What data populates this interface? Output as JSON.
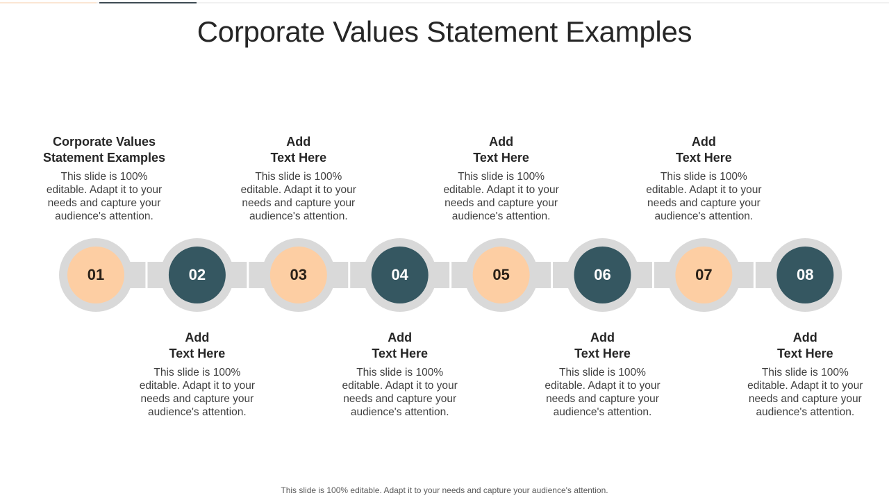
{
  "slide": {
    "title": "Corporate Values Statement Examples",
    "footer": "This slide is 100% editable. Adapt it to your needs and capture your audience's attention."
  },
  "colors": {
    "ring": "#d9d9d9",
    "light": "#fdcea3",
    "dark": "#355761",
    "title_text": "#262626"
  },
  "steps": [
    {
      "number": "01",
      "style": "light",
      "position": "top",
      "heading_line1": "Corporate Values",
      "heading_line2": "Statement Examples",
      "body": "This slide is 100% editable. Adapt it to your needs and capture your audience's attention."
    },
    {
      "number": "02",
      "style": "dark",
      "position": "bottom",
      "heading_line1": "Add",
      "heading_line2": "Text Here",
      "body": "This slide is 100% editable. Adapt it to your needs and capture your audience's attention."
    },
    {
      "number": "03",
      "style": "light",
      "position": "top",
      "heading_line1": "Add",
      "heading_line2": "Text Here",
      "body": "This slide is 100% editable. Adapt it to your needs and capture your audience's attention."
    },
    {
      "number": "04",
      "style": "dark",
      "position": "bottom",
      "heading_line1": "Add",
      "heading_line2": "Text Here",
      "body": "This slide is 100% editable. Adapt it to your needs and capture your audience's attention."
    },
    {
      "number": "05",
      "style": "light",
      "position": "top",
      "heading_line1": "Add",
      "heading_line2": "Text Here",
      "body": "This slide is 100% editable. Adapt it to your needs and capture your audience's attention."
    },
    {
      "number": "06",
      "style": "dark",
      "position": "bottom",
      "heading_line1": "Add",
      "heading_line2": "Text Here",
      "body": "This slide is 100% editable. Adapt it to your needs and capture your audience's attention."
    },
    {
      "number": "07",
      "style": "light",
      "position": "top",
      "heading_line1": "Add",
      "heading_line2": "Text Here",
      "body": "This slide is 100% editable. Adapt it to your needs and capture your audience's attention."
    },
    {
      "number": "08",
      "style": "dark",
      "position": "bottom",
      "heading_line1": "Add",
      "heading_line2": "Text Here",
      "body": "This slide is 100% editable. Adapt it to your needs and capture your audience's attention."
    }
  ]
}
